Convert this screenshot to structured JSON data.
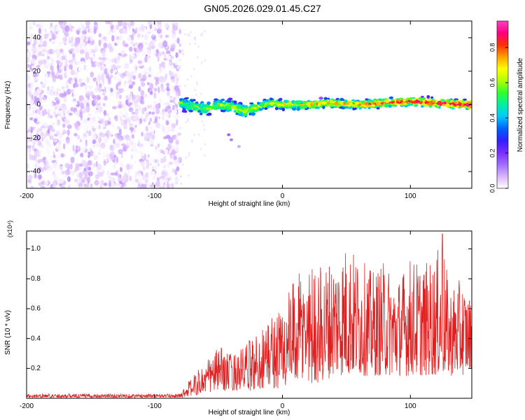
{
  "title": "GN05.2026.029.01.45.C27",
  "colors": {
    "snr_line": "#e02020",
    "background": "#ffffff",
    "axis": "#000000",
    "colorscale": [
      "#ffffff",
      "#d8b4ff",
      "#a06cff",
      "#7a2cff",
      "#3020ff",
      "#0060ff",
      "#00c8ff",
      "#00f0a0",
      "#30ff30",
      "#b0ff00",
      "#ffff00",
      "#ffa000",
      "#ff3000",
      "#ff0080",
      "#ff40c0"
    ]
  },
  "chart_data": [
    {
      "type": "heatmap",
      "name": "spectrogram",
      "xlabel": "Height of straight line (km)",
      "ylabel": "Frequency (Hz)",
      "xlim": [
        -200,
        148
      ],
      "ylim": [
        -50,
        50
      ],
      "xticks": [
        -200,
        -100,
        0,
        100
      ],
      "yticks": [
        -40,
        -20,
        0,
        20,
        40
      ],
      "colorbar": {
        "label": "Normalized spectral amplitude",
        "range": [
          0,
          0.95
        ],
        "ticks": [
          "0.0",
          "0.2",
          "0.4",
          "0.6",
          "0.8"
        ]
      },
      "regions": [
        {
          "description": "broadband noise",
          "x": [
            -200,
            -80
          ],
          "freq": [
            -50,
            50
          ],
          "amplitude": [
            0.0,
            0.1
          ]
        },
        {
          "description": "narrowband signal near 0 Hz",
          "x": [
            -80,
            148
          ],
          "freq": [
            -5,
            5
          ],
          "amplitude": [
            0.2,
            0.9
          ]
        }
      ],
      "signal_track": {
        "x": [
          -80,
          -70,
          -60,
          -50,
          -40,
          -30,
          -20,
          -10,
          0,
          20,
          40,
          60,
          80,
          100,
          120,
          148
        ],
        "freq": [
          1,
          -1,
          -3,
          0,
          -1,
          -4,
          -2,
          1,
          0,
          0,
          1,
          0,
          1,
          2,
          1,
          0
        ]
      }
    },
    {
      "type": "line",
      "name": "snr",
      "xlabel": "Height of straight line (km)",
      "ylabel": "SNR (10 * v/v)",
      "y_multiplier": "(x10⁴)",
      "xlim": [
        -200,
        148
      ],
      "ylim": [
        0,
        1.12
      ],
      "xticks": [
        -200,
        -100,
        0,
        100
      ],
      "yticks": [
        "0.2",
        "0.4",
        "0.6",
        "0.8",
        "1.0"
      ],
      "envelope": {
        "x": [
          -200,
          -80,
          -75,
          -60,
          -50,
          -40,
          -30,
          -20,
          -10,
          0,
          10,
          20,
          30,
          40,
          50,
          60,
          70,
          80,
          90,
          100,
          110,
          120,
          125,
          130,
          140,
          148
        ],
        "y_min": [
          0.005,
          0.005,
          0.01,
          0.03,
          0.05,
          0.05,
          0.05,
          0.05,
          0.08,
          0.05,
          0.1,
          0.1,
          0.1,
          0.15,
          0.15,
          0.15,
          0.15,
          0.15,
          0.15,
          0.15,
          0.15,
          0.15,
          0.15,
          0.15,
          0.15,
          0.2
        ],
        "y_max": [
          0.03,
          0.03,
          0.1,
          0.25,
          0.35,
          0.3,
          0.35,
          0.45,
          0.55,
          0.65,
          0.8,
          0.93,
          0.9,
          0.95,
          1.04,
          0.95,
          0.85,
          0.92,
          0.8,
          0.95,
          0.9,
          0.95,
          1.1,
          0.75,
          0.8,
          0.65
        ]
      },
      "peak": {
        "x": 125,
        "y": 1.1
      }
    }
  ]
}
